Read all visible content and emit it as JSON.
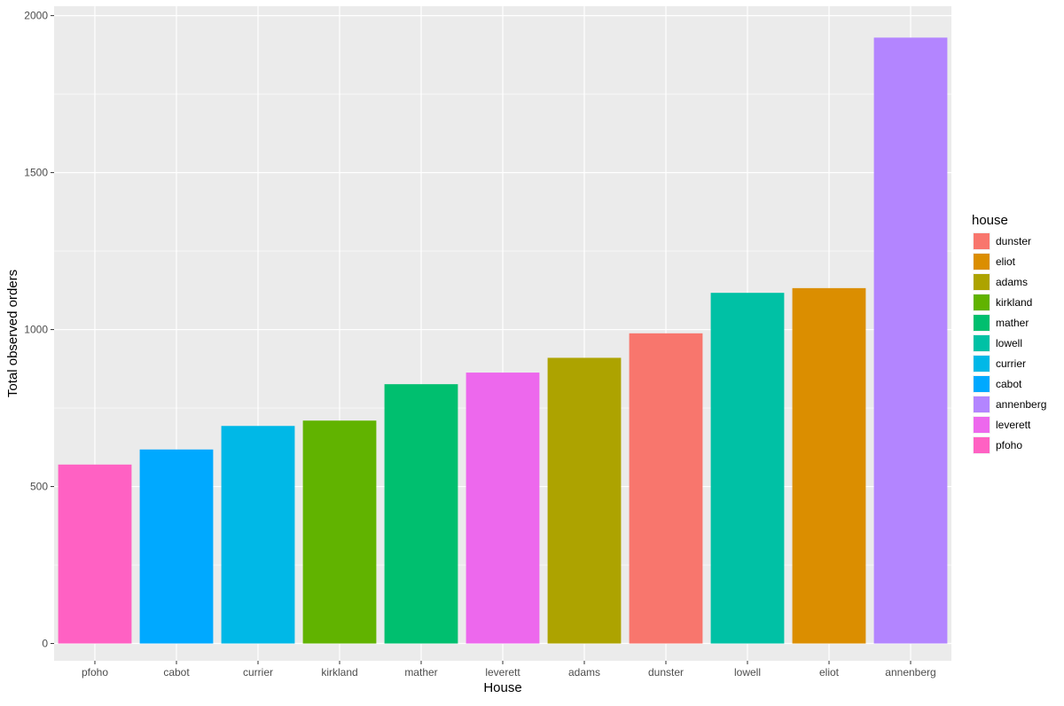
{
  "chart_data": {
    "type": "bar",
    "categories": [
      "pfoho",
      "cabot",
      "currier",
      "kirkland",
      "mather",
      "leverett",
      "adams",
      "dunster",
      "lowell",
      "eliot",
      "annenberg"
    ],
    "values": [
      570,
      618,
      693,
      710,
      826,
      863,
      910,
      988,
      1117,
      1132,
      1930
    ],
    "bar_colors": [
      "#FF61C3",
      "#00A9FF",
      "#00B8E7",
      "#61B300",
      "#00BF6F",
      "#ED68ED",
      "#ADA300",
      "#F8766D",
      "#00C1A5",
      "#DB8E00",
      "#B385FF"
    ],
    "xlabel": "House",
    "ylabel": "Total observed orders",
    "ylim": [
      -55,
      2030
    ],
    "yticks": [
      0,
      500,
      1000,
      1500,
      2000
    ],
    "grid": true,
    "panel_background": "#EBEBEB",
    "legend": {
      "title": "house",
      "position": "right",
      "items": [
        {
          "label": "dunster",
          "color": "#F8766D"
        },
        {
          "label": "eliot",
          "color": "#DB8E00"
        },
        {
          "label": "adams",
          "color": "#ADA300"
        },
        {
          "label": "kirkland",
          "color": "#61B300"
        },
        {
          "label": "mather",
          "color": "#00BF6F"
        },
        {
          "label": "lowell",
          "color": "#00C1A5"
        },
        {
          "label": "currier",
          "color": "#00B8E7"
        },
        {
          "label": "cabot",
          "color": "#00A9FF"
        },
        {
          "label": "annenberg",
          "color": "#B385FF"
        },
        {
          "label": "leverett",
          "color": "#ED68ED"
        },
        {
          "label": "pfoho",
          "color": "#FF61C3"
        }
      ]
    }
  }
}
